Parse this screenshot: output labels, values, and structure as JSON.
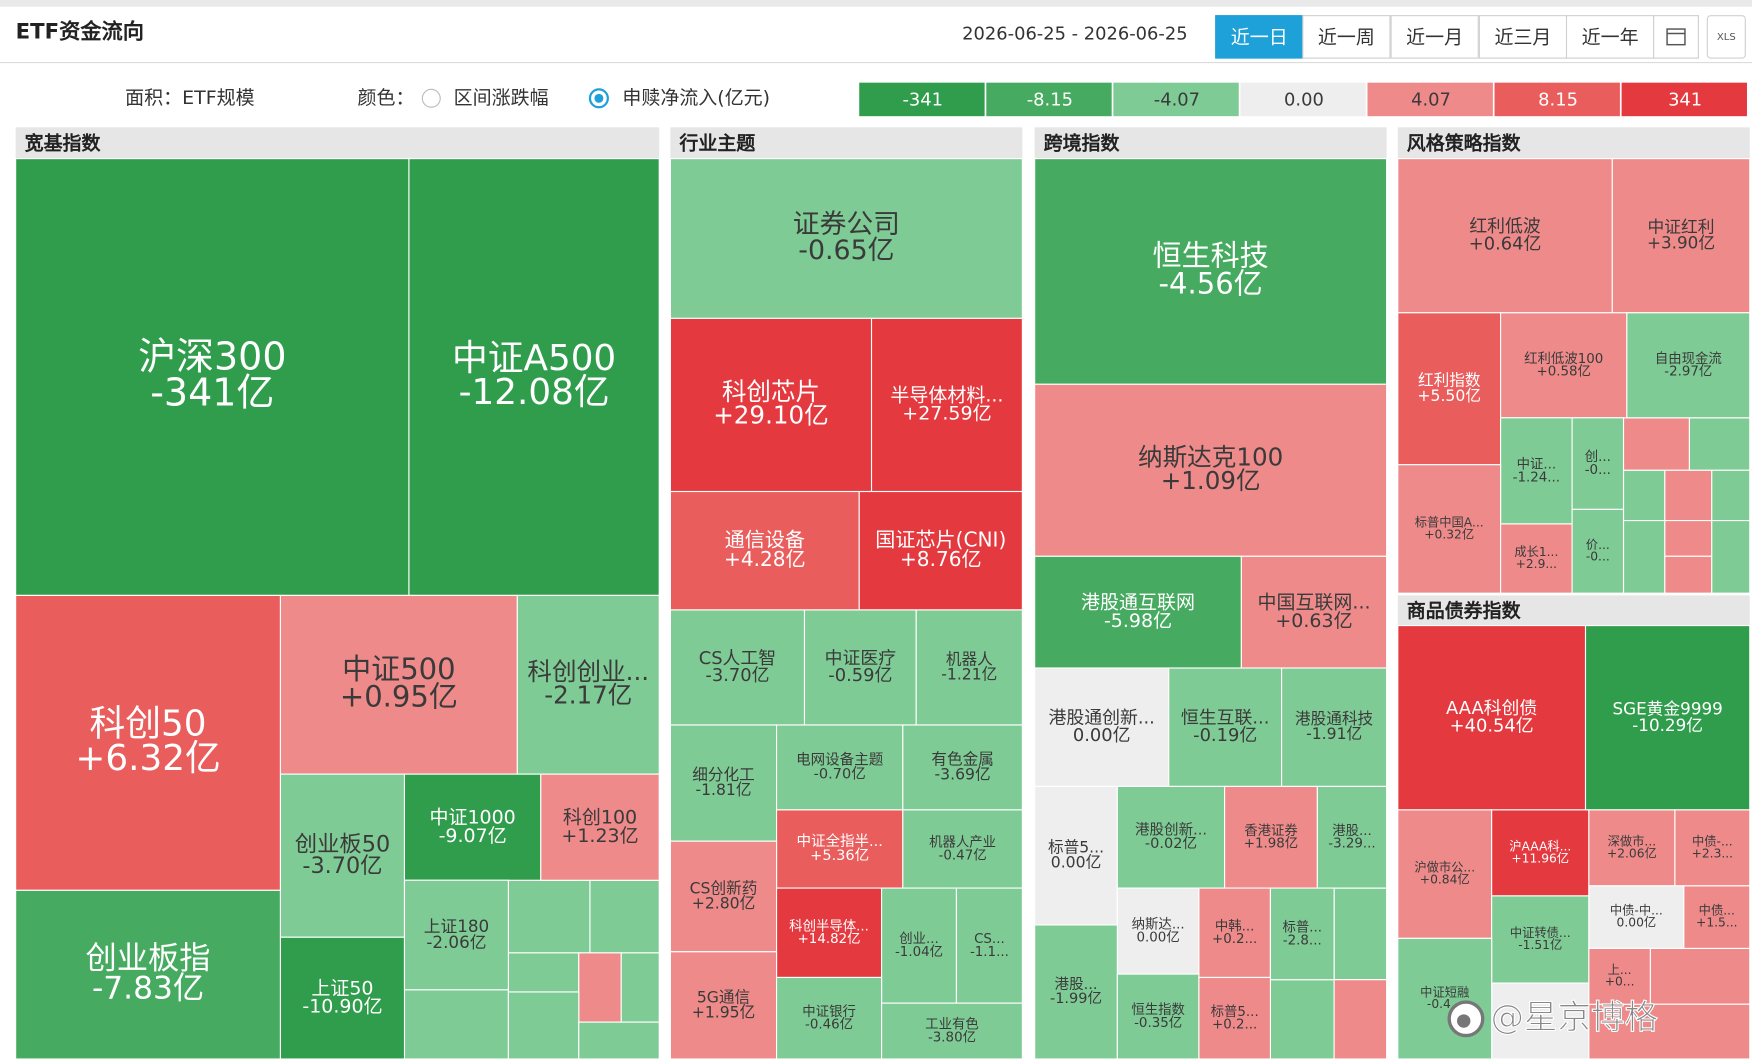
{
  "header": {
    "title": "ETF资金流向",
    "date_range": "2026-06-25 - 2026-06-25",
    "periods": [
      "近一日",
      "近一周",
      "近一月",
      "近三月",
      "近一年"
    ],
    "export": "XLS"
  },
  "controls": {
    "area_label": "面积：ETF规模",
    "color_label": "颜色：",
    "options": [
      "区间涨跌幅",
      "申赎净流入(亿元)"
    ]
  },
  "legend": [
    {
      "label": "-341",
      "color": "#2f9d4c"
    },
    {
      "label": "-8.15",
      "color": "#46ab60"
    },
    {
      "label": "-4.07",
      "color": "#7fcb95"
    },
    {
      "label": "0.00",
      "color": "#eeeeee"
    },
    {
      "label": "4.07",
      "color": "#ee8a8a"
    },
    {
      "label": "8.15",
      "color": "#ea5d5d"
    },
    {
      "label": "341",
      "color": "#e3393f"
    }
  ],
  "panels": [
    {
      "title": "宽基指数",
      "tiles": [
        {
          "name": "沪深300",
          "label": "-341亿",
          "color": "#2f9d4c"
        },
        {
          "name": "中证A500",
          "label": "-12.08亿",
          "color": "#2f9d4c"
        },
        {
          "name": "科创50",
          "label": "+6.32亿",
          "color": "#ea5d5d"
        },
        {
          "name": "中证500",
          "label": "+0.95亿",
          "color": "#ee8a8a"
        },
        {
          "name": "科创创业...",
          "label": "-2.17亿",
          "color": "#7fcb95"
        },
        {
          "name": "创业板指",
          "label": "-7.83亿",
          "color": "#46ab60"
        },
        {
          "name": "创业板50",
          "label": "-3.70亿",
          "color": "#7fcb95"
        },
        {
          "name": "中证1000",
          "label": "-9.07亿",
          "color": "#2f9d4c"
        },
        {
          "name": "科创100",
          "label": "+1.23亿",
          "color": "#ee8a8a"
        },
        {
          "name": "上证50",
          "label": "-10.90亿",
          "color": "#2f9d4c"
        },
        {
          "name": "上证180",
          "label": "-2.06亿",
          "color": "#7fcb95"
        }
      ]
    },
    {
      "title": "行业主题",
      "tiles": [
        {
          "name": "证券公司",
          "label": "-0.65亿",
          "color": "#7fcb95"
        },
        {
          "name": "科创芯片",
          "label": "+29.10亿",
          "color": "#e3393f"
        },
        {
          "name": "半导体材料...",
          "label": "+27.59亿",
          "color": "#e3393f"
        },
        {
          "name": "通信设备",
          "label": "+4.28亿",
          "color": "#ea5d5d"
        },
        {
          "name": "国证芯片(CNI)",
          "label": "+8.76亿",
          "color": "#e3393f"
        },
        {
          "name": "CS人工智",
          "label": "-3.70亿",
          "color": "#7fcb95"
        },
        {
          "name": "中证医疗",
          "label": "-0.59亿",
          "color": "#7fcb95"
        },
        {
          "name": "机器人",
          "label": "-1.21亿",
          "color": "#7fcb95"
        },
        {
          "name": "细分化工",
          "label": "-1.81亿",
          "color": "#7fcb95"
        },
        {
          "name": "电网设备主题",
          "label": "-0.70亿",
          "color": "#7fcb95"
        },
        {
          "name": "有色金属",
          "label": "-3.69亿",
          "color": "#7fcb95"
        },
        {
          "name": "中证全指半...",
          "label": "+5.36亿",
          "color": "#ea5d5d"
        },
        {
          "name": "机器人产业",
          "label": "-0.47亿",
          "color": "#7fcb95"
        },
        {
          "name": "CS创新药",
          "label": "+2.80亿",
          "color": "#ee8a8a"
        },
        {
          "name": "科创半导体...",
          "label": "+14.82亿",
          "color": "#e3393f"
        },
        {
          "name": "创业...",
          "label": "-1.04亿",
          "color": "#7fcb95"
        },
        {
          "name": "CS...",
          "label": "-1.1...",
          "color": "#7fcb95"
        },
        {
          "name": "5G通信",
          "label": "+1.95亿",
          "color": "#ee8a8a"
        },
        {
          "name": "中证银行",
          "label": "-0.46亿",
          "color": "#7fcb95"
        },
        {
          "name": "工业有色",
          "label": "-3.80亿",
          "color": "#7fcb95"
        }
      ]
    },
    {
      "title": "跨境指数",
      "tiles": [
        {
          "name": "恒生科技",
          "label": "-4.56亿",
          "color": "#46ab60"
        },
        {
          "name": "纳斯达克100",
          "label": "+1.09亿",
          "color": "#ee8a8a"
        },
        {
          "name": "港股通互联网",
          "label": "-5.98亿",
          "color": "#46ab60"
        },
        {
          "name": "中国互联网...",
          "label": "+0.63亿",
          "color": "#ee8a8a"
        },
        {
          "name": "港股通创新...",
          "label": "0.00亿",
          "color": "#eeeeee"
        },
        {
          "name": "恒生互联...",
          "label": "-0.19亿",
          "color": "#7fcb95"
        },
        {
          "name": "港股通科技",
          "label": "-1.91亿",
          "color": "#7fcb95"
        },
        {
          "name": "标普5...",
          "label": "0.00亿",
          "color": "#eeeeee"
        },
        {
          "name": "港股创新...",
          "label": "-0.02亿",
          "color": "#7fcb95"
        },
        {
          "name": "香港证券",
          "label": "+1.98亿",
          "color": "#ee8a8a"
        },
        {
          "name": "港股...",
          "label": "-3.29...",
          "color": "#7fcb95"
        },
        {
          "name": "纳斯达...",
          "label": "0.00亿",
          "color": "#eeeeee"
        },
        {
          "name": "中韩...",
          "label": "+0.2...",
          "color": "#ee8a8a"
        },
        {
          "name": "标普...",
          "label": "-2.8...",
          "color": "#7fcb95"
        },
        {
          "name": "港股...",
          "label": "-1.99亿",
          "color": "#7fcb95"
        },
        {
          "name": "恒生指数",
          "label": "-0.35亿",
          "color": "#7fcb95"
        },
        {
          "name": "标普5...",
          "label": "+0.2...",
          "color": "#ee8a8a"
        }
      ]
    },
    {
      "title": "风格策略指数",
      "tiles": [
        {
          "name": "红利低波",
          "label": "+0.64亿",
          "color": "#ee8a8a"
        },
        {
          "name": "中证红利",
          "label": "+3.90亿",
          "color": "#ee8a8a"
        },
        {
          "name": "红利指数",
          "label": "+5.50亿",
          "color": "#ea5d5d"
        },
        {
          "name": "红利低波100",
          "label": "+0.58亿",
          "color": "#ee8a8a"
        },
        {
          "name": "自由现金流",
          "label": "-2.97亿",
          "color": "#7fcb95"
        },
        {
          "name": "中证...",
          "label": "-1.24...",
          "color": "#7fcb95"
        },
        {
          "name": "创...",
          "label": "-0...",
          "color": "#7fcb95"
        },
        {
          "name": "标普中国A...",
          "label": "+0.32亿",
          "color": "#ee8a8a"
        },
        {
          "name": "成长1...",
          "label": "+2.9...",
          "color": "#ee8a8a"
        },
        {
          "name": "价...",
          "label": "-0...",
          "color": "#7fcb95"
        }
      ]
    },
    {
      "title": "商品债券指数",
      "tiles": [
        {
          "name": "AAA科创债",
          "label": "+40.54亿",
          "color": "#e3393f"
        },
        {
          "name": "SGE黄金9999",
          "label": "-10.29亿",
          "color": "#2f9d4c"
        },
        {
          "name": "沪做市公...",
          "label": "+0.84亿",
          "color": "#ee8a8a"
        },
        {
          "name": "沪AAA科...",
          "label": "+11.96亿",
          "color": "#e3393f"
        },
        {
          "name": "深做市...",
          "label": "+2.06亿",
          "color": "#ee8a8a"
        },
        {
          "name": "中债-...",
          "label": "+2.3...",
          "color": "#ee8a8a"
        },
        {
          "name": "中证转债...",
          "label": "-1.51亿",
          "color": "#7fcb95"
        },
        {
          "name": "中债-中...",
          "label": "0.00亿",
          "color": "#eeeeee"
        },
        {
          "name": "中债...",
          "label": "+1.5...",
          "color": "#ee8a8a"
        },
        {
          "name": "中证短融",
          "label": "-0.4...",
          "color": "#7fcb95"
        },
        {
          "name": "上...",
          "label": "+0...",
          "color": "#ee8a8a"
        }
      ]
    }
  ],
  "watermark": "@星京博格"
}
